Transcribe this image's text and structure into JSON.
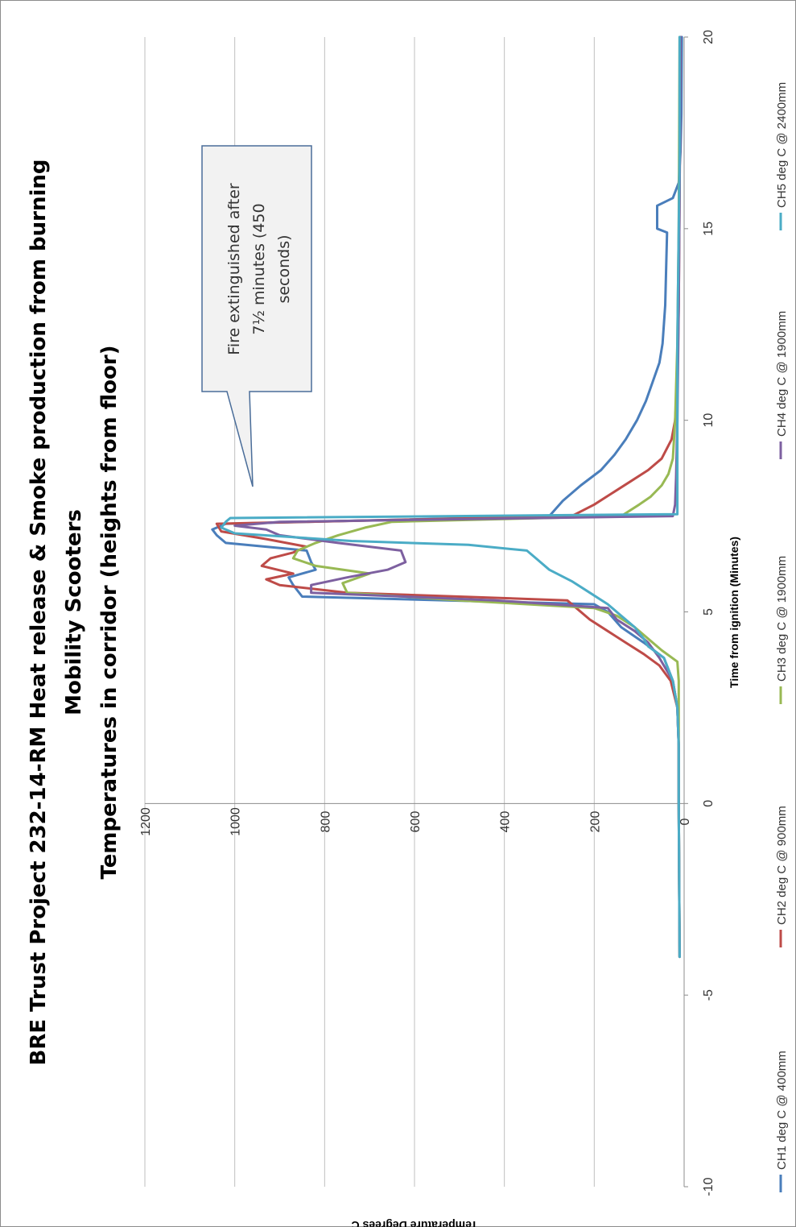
{
  "chart_data": {
    "type": "line",
    "title": "BRE Trust Project 232-14-RM Heat release & Smoke production from burning Mobility Scooters",
    "title_lines": [
      "BRE Trust Project 232-14-RM Heat release & Smoke production from burning",
      "Mobility Scooters",
      "Temperatures in corridor (heights from floor)"
    ],
    "xlabel": "Time from ignition (Minutes)",
    "ylabel": "Temperature Degrees C",
    "xlim": [
      -10,
      20
    ],
    "ylim": [
      0,
      1200
    ],
    "x_ticks": [
      "-10",
      "-5",
      "0",
      "5",
      "10",
      "15",
      "20"
    ],
    "y_ticks": [
      "0",
      "200",
      "400",
      "600",
      "800",
      "1000",
      "1200"
    ],
    "grid": true,
    "orientation": "rotated 90 degrees counter-clockwise",
    "legend_position": "bottom",
    "annotation": {
      "lines": [
        "Fire extinguished after",
        "7½ minutes (450",
        "seconds)"
      ],
      "points_to": {
        "x": 7.5,
        "y": 960
      }
    },
    "series": [
      {
        "name": "CH1 deg C @ 400mm",
        "color": "#4a7ebb",
        "points": [
          [
            -4,
            10
          ],
          [
            0,
            12
          ],
          [
            1.5,
            12
          ],
          [
            2.5,
            15
          ],
          [
            3.2,
            25
          ],
          [
            3.8,
            45
          ],
          [
            4.2,
            90
          ],
          [
            4.6,
            140
          ],
          [
            5,
            170
          ],
          [
            5.2,
            200
          ],
          [
            5.4,
            850
          ],
          [
            5.7,
            870
          ],
          [
            5.9,
            880
          ],
          [
            6.1,
            820
          ],
          [
            6.3,
            830
          ],
          [
            6.6,
            840
          ],
          [
            6.8,
            1020
          ],
          [
            7,
            1040
          ],
          [
            7.15,
            1050
          ],
          [
            7.3,
            1020
          ],
          [
            7.5,
            300
          ],
          [
            7.9,
            270
          ],
          [
            8.3,
            230
          ],
          [
            8.7,
            185
          ],
          [
            9.1,
            155
          ],
          [
            9.5,
            130
          ],
          [
            10,
            105
          ],
          [
            10.5,
            85
          ],
          [
            11,
            70
          ],
          [
            11.5,
            55
          ],
          [
            12,
            48
          ],
          [
            13,
            42
          ],
          [
            14,
            40
          ],
          [
            14.9,
            38
          ],
          [
            15,
            60
          ],
          [
            15.6,
            60
          ],
          [
            15.8,
            25
          ],
          [
            16.2,
            12
          ],
          [
            17,
            8
          ],
          [
            18,
            6
          ],
          [
            20,
            5
          ]
        ]
      },
      {
        "name": "CH2 deg C @ 900mm",
        "color": "#be4b48",
        "points": [
          [
            -4,
            10
          ],
          [
            0,
            12
          ],
          [
            1.5,
            12
          ],
          [
            2.5,
            15
          ],
          [
            3.2,
            30
          ],
          [
            3.6,
            55
          ],
          [
            3.9,
            90
          ],
          [
            4.2,
            130
          ],
          [
            4.5,
            170
          ],
          [
            4.8,
            210
          ],
          [
            5.1,
            240
          ],
          [
            5.3,
            260
          ],
          [
            5.5,
            750
          ],
          [
            5.7,
            900
          ],
          [
            5.85,
            930
          ],
          [
            6,
            870
          ],
          [
            6.2,
            940
          ],
          [
            6.4,
            920
          ],
          [
            6.55,
            870
          ],
          [
            6.7,
            840
          ],
          [
            6.9,
            930
          ],
          [
            7.1,
            1030
          ],
          [
            7.3,
            1040
          ],
          [
            7.5,
            250
          ],
          [
            7.8,
            200
          ],
          [
            8.1,
            160
          ],
          [
            8.4,
            120
          ],
          [
            8.7,
            80
          ],
          [
            9,
            50
          ],
          [
            9.5,
            28
          ],
          [
            10,
            20
          ],
          [
            11,
            15
          ],
          [
            13,
            12
          ],
          [
            16,
            10
          ],
          [
            20,
            8
          ]
        ]
      },
      {
        "name": "CH3 deg C @ 1900mm",
        "color": "#98b954",
        "points": [
          [
            -4,
            10
          ],
          [
            0,
            12
          ],
          [
            1.5,
            12
          ],
          [
            2.5,
            12
          ],
          [
            3.2,
            12
          ],
          [
            3.7,
            15
          ],
          [
            4,
            50
          ],
          [
            4.3,
            80
          ],
          [
            4.6,
            110
          ],
          [
            4.9,
            150
          ],
          [
            5.1,
            200
          ],
          [
            5.3,
            500
          ],
          [
            5.5,
            750
          ],
          [
            5.75,
            760
          ],
          [
            6,
            700
          ],
          [
            6.2,
            820
          ],
          [
            6.4,
            870
          ],
          [
            6.6,
            860
          ],
          [
            6.8,
            820
          ],
          [
            7,
            770
          ],
          [
            7.2,
            710
          ],
          [
            7.35,
            650
          ],
          [
            7.5,
            140
          ],
          [
            7.8,
            100
          ],
          [
            8,
            75
          ],
          [
            8.3,
            50
          ],
          [
            8.6,
            35
          ],
          [
            9,
            25
          ],
          [
            10,
            20
          ],
          [
            12,
            15
          ],
          [
            15,
            12
          ],
          [
            20,
            10
          ]
        ]
      },
      {
        "name": "CH4 deg C @ 1900mm",
        "color": "#7d60a0",
        "points": [
          [
            -4,
            10
          ],
          [
            0,
            12
          ],
          [
            1.5,
            12
          ],
          [
            2.5,
            15
          ],
          [
            3.2,
            25
          ],
          [
            3.8,
            55
          ],
          [
            4.2,
            80
          ],
          [
            4.5,
            110
          ],
          [
            4.8,
            150
          ],
          [
            5.1,
            170
          ],
          [
            5.3,
            420
          ],
          [
            5.5,
            830
          ],
          [
            5.7,
            830
          ],
          [
            5.9,
            750
          ],
          [
            6.1,
            660
          ],
          [
            6.3,
            620
          ],
          [
            6.6,
            630
          ],
          [
            6.8,
            770
          ],
          [
            7,
            900
          ],
          [
            7.15,
            930
          ],
          [
            7.25,
            1000
          ],
          [
            7.35,
            900
          ],
          [
            7.5,
            25
          ],
          [
            7.8,
            20
          ],
          [
            8.5,
            18
          ],
          [
            10,
            15
          ],
          [
            13,
            12
          ],
          [
            16,
            10
          ],
          [
            20,
            8
          ]
        ]
      },
      {
        "name": "CH5 deg C @ 2400mm",
        "color": "#4bacc6",
        "points": [
          [
            -4,
            10
          ],
          [
            0,
            12
          ],
          [
            1.5,
            12
          ],
          [
            2.5,
            15
          ],
          [
            3.2,
            25
          ],
          [
            3.8,
            45
          ],
          [
            4.1,
            80
          ],
          [
            4.3,
            90
          ],
          [
            4.6,
            110
          ],
          [
            4.9,
            140
          ],
          [
            5.2,
            170
          ],
          [
            5.5,
            210
          ],
          [
            5.8,
            250
          ],
          [
            6.1,
            300
          ],
          [
            6.4,
            330
          ],
          [
            6.6,
            350
          ],
          [
            6.75,
            480
          ],
          [
            6.85,
            740
          ],
          [
            7.05,
            1000
          ],
          [
            7.2,
            1030
          ],
          [
            7.35,
            1020
          ],
          [
            7.45,
            1010
          ],
          [
            7.55,
            15
          ],
          [
            8,
            15
          ],
          [
            10,
            15
          ],
          [
            12,
            15
          ],
          [
            15,
            12
          ],
          [
            17,
            10
          ],
          [
            20,
            10
          ]
        ]
      }
    ]
  }
}
